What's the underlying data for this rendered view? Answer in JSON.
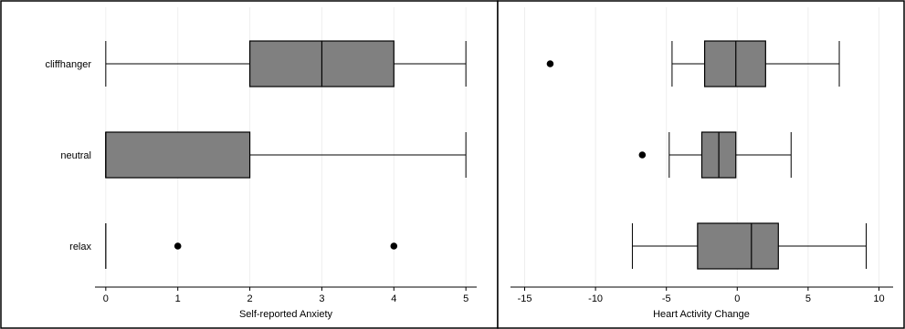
{
  "chart_data": [
    {
      "type": "boxplot",
      "orientation": "horizontal",
      "xlabel": "Self-reported Anxiety",
      "ylabel": "",
      "xlim": [
        -0.15,
        5.15
      ],
      "xticks": [
        0,
        1,
        2,
        3,
        4,
        5
      ],
      "grid": true,
      "categories": [
        "cliffhanger",
        "neutral",
        "relax"
      ],
      "box_color": "#808080",
      "boxes": [
        {
          "category": "cliffhanger",
          "min": 0,
          "q1": 2,
          "median": 3,
          "q3": 4,
          "max": 5,
          "outliers": []
        },
        {
          "category": "neutral",
          "min": 0,
          "q1": 0,
          "median": 0,
          "q3": 2,
          "max": 5,
          "outliers": []
        },
        {
          "category": "relax",
          "min": 0,
          "q1": 0,
          "median": 0,
          "q3": 0,
          "max": 0,
          "outliers": [
            1,
            4
          ]
        }
      ]
    },
    {
      "type": "boxplot",
      "orientation": "horizontal",
      "xlabel": "Heart Activity Change",
      "ylabel": "",
      "xlim": [
        -16,
        11
      ],
      "xticks": [
        -15,
        -10,
        -5,
        0,
        5,
        10
      ],
      "grid": true,
      "categories": [
        "cliffhanger",
        "neutral",
        "relax"
      ],
      "box_color": "#808080",
      "boxes": [
        {
          "category": "cliffhanger",
          "min": -4.6,
          "q1": -2.3,
          "median": -0.1,
          "q3": 2.0,
          "max": 7.2,
          "outliers": [
            -13.2
          ]
        },
        {
          "category": "neutral",
          "min": -4.8,
          "q1": -2.5,
          "median": -1.3,
          "q3": -0.1,
          "max": 3.8,
          "outliers": [
            -6.7
          ]
        },
        {
          "category": "relax",
          "min": -7.4,
          "q1": -2.8,
          "median": 1.0,
          "q3": 2.9,
          "max": 9.1,
          "outliers": []
        }
      ]
    }
  ]
}
